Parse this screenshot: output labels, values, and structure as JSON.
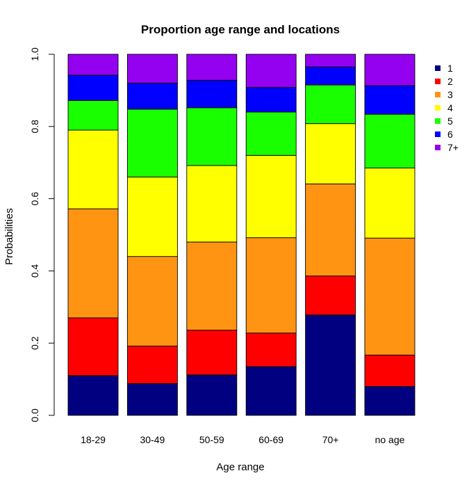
{
  "chart_data": {
    "type": "bar",
    "stacked": true,
    "title": "Proportion age range and locations",
    "xlabel": "Age range",
    "ylabel": "Probabilities",
    "ylim": [
      0,
      1
    ],
    "yticks": [
      "0.0",
      "0.2",
      "0.4",
      "0.6",
      "0.8",
      "1.0"
    ],
    "grid": false,
    "legend_position": "top-right",
    "categories": [
      "18-29",
      "30-49",
      "50-59",
      "60-69",
      "70+",
      "no age"
    ],
    "series": [
      {
        "name": "1",
        "color": "#000080",
        "values": [
          0.11,
          0.088,
          0.112,
          0.135,
          0.278,
          0.08
        ]
      },
      {
        "name": "2",
        "color": "#ff0000",
        "values": [
          0.16,
          0.104,
          0.124,
          0.093,
          0.108,
          0.087
        ]
      },
      {
        "name": "3",
        "color": "#ff9412",
        "values": [
          0.302,
          0.248,
          0.244,
          0.264,
          0.255,
          0.324
        ]
      },
      {
        "name": "4",
        "color": "#ffff00",
        "values": [
          0.218,
          0.22,
          0.212,
          0.228,
          0.167,
          0.194
        ]
      },
      {
        "name": "5",
        "color": "#19ff00",
        "values": [
          0.082,
          0.188,
          0.16,
          0.12,
          0.107,
          0.149
        ]
      },
      {
        "name": "6",
        "color": "#0000ff",
        "values": [
          0.07,
          0.072,
          0.076,
          0.068,
          0.05,
          0.079
        ]
      },
      {
        "name": "7+",
        "color": "#9400f0",
        "values": [
          0.058,
          0.08,
          0.072,
          0.092,
          0.035,
          0.087
        ]
      }
    ]
  }
}
